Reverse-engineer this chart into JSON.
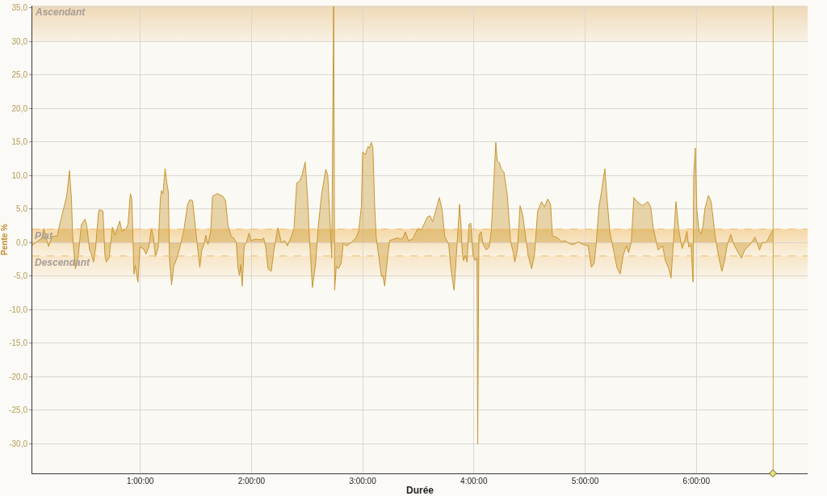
{
  "chart_data": {
    "type": "area",
    "xlabel": "Durée",
    "ylabel": "Pente %",
    "x": [
      0.03,
      0.061,
      0.121,
      0.134,
      0.15,
      0.177,
      0.206,
      0.255,
      0.271,
      0.315,
      0.339,
      0.364,
      0.382,
      0.393,
      0.417,
      0.441,
      0.46,
      0.472,
      0.504,
      0.52,
      0.545,
      0.557,
      0.581,
      0.6,
      0.625,
      0.634,
      0.665,
      0.683,
      0.695,
      0.721,
      0.75,
      0.774,
      0.816,
      0.835,
      0.872,
      0.89,
      0.912,
      0.925,
      0.944,
      0.956,
      0.973,
      0.98,
      0.997,
      1.028,
      1.053,
      1.077,
      1.101,
      1.118,
      1.137,
      1.162,
      1.181,
      1.191,
      1.205,
      1.224,
      1.239,
      1.253,
      1.263,
      1.282,
      1.302,
      1.331,
      1.36,
      1.391,
      1.427,
      1.447,
      1.471,
      1.5,
      1.52,
      1.536,
      1.554,
      1.573,
      1.59,
      1.609,
      1.634,
      1.65,
      1.694,
      1.742,
      1.766,
      1.79,
      1.819,
      1.839,
      1.863,
      1.88,
      1.892,
      1.904,
      1.917,
      1.935,
      1.955,
      1.979,
      1.996,
      2.033,
      2.093,
      2.11,
      2.129,
      2.149,
      2.178,
      2.202,
      2.238,
      2.269,
      2.298,
      2.323,
      2.359,
      2.383,
      2.407,
      2.432,
      2.456,
      2.483,
      2.504,
      2.521,
      2.548,
      2.577,
      2.601,
      2.632,
      2.668,
      2.686,
      2.71,
      2.722,
      2.739,
      2.748,
      2.763,
      2.782,
      2.806,
      2.826,
      2.855,
      2.904,
      2.94,
      2.964,
      2.988,
      3.0,
      3.024,
      3.049,
      3.06,
      3.078,
      3.092,
      3.109,
      3.121,
      3.145,
      3.169,
      3.181,
      3.198,
      3.218,
      3.242,
      3.278,
      3.314,
      3.339,
      3.363,
      3.383,
      3.412,
      3.448,
      3.496,
      3.528,
      3.557,
      3.581,
      3.605,
      3.629,
      3.653,
      3.689,
      3.713,
      3.738,
      3.774,
      3.793,
      3.822,
      3.847,
      3.871,
      3.883,
      3.895,
      3.907,
      3.924,
      3.938,
      3.956,
      3.972,
      3.992,
      4.011,
      4.028,
      4.034,
      4.045,
      4.065,
      4.083,
      4.112,
      4.137,
      4.156,
      4.174,
      4.197,
      4.21,
      4.229,
      4.246,
      4.27,
      4.301,
      4.33,
      4.355,
      4.367,
      4.391,
      4.415,
      4.439,
      4.464,
      4.488,
      4.519,
      4.544,
      4.573,
      4.609,
      4.633,
      4.664,
      4.689,
      4.706,
      4.754,
      4.79,
      4.814,
      4.863,
      4.899,
      4.936,
      4.983,
      5.027,
      5.056,
      5.081,
      5.099,
      5.124,
      5.148,
      5.177,
      5.197,
      5.221,
      5.25,
      5.286,
      5.315,
      5.342,
      5.371,
      5.39,
      5.415,
      5.438,
      5.467,
      5.516,
      5.564,
      5.589,
      5.613,
      5.656,
      5.697,
      5.721,
      5.753,
      5.772,
      5.794,
      5.816,
      5.843,
      5.872,
      5.898,
      5.915,
      5.932,
      5.952,
      5.97,
      5.976,
      5.99,
      6.004,
      6.024,
      6.043,
      6.06,
      6.077,
      6.108,
      6.133,
      6.169,
      6.198,
      6.229,
      6.253,
      6.278,
      6.309,
      6.338,
      6.375,
      6.406,
      6.435,
      6.483,
      6.527,
      6.568,
      6.592,
      6.629,
      6.665,
      6.689
    ],
    "series": [
      {
        "color": "#c8962e",
        "values": [
          -0.4,
          0.0,
          0.7,
          2.1,
          0.9,
          -0.6,
          0.9,
          1.0,
          2.3,
          5.3,
          6.9,
          10.7,
          6.5,
          0.9,
          -3.9,
          -2.3,
          0.9,
          2.7,
          3.5,
          2.5,
          -1.1,
          -1.5,
          -2.9,
          -0.7,
          4.5,
          4.9,
          4.7,
          -1.9,
          -2.9,
          -2.3,
          2.3,
          1.1,
          3.2,
          1.7,
          2.0,
          2.7,
          7.3,
          6.3,
          -4.7,
          -3.4,
          -5.3,
          -5.9,
          -0.7,
          -0.9,
          -1.7,
          -0.7,
          2.1,
          0.9,
          -2.1,
          -0.7,
          6.5,
          7.7,
          7.3,
          11.0,
          9.0,
          7.5,
          -2.3,
          -6.3,
          -3.5,
          -2.3,
          -0.5,
          1.7,
          5.7,
          6.4,
          6.2,
          1.7,
          -1.3,
          -3.7,
          -1.1,
          -0.3,
          1.1,
          -0.3,
          1.7,
          6.9,
          7.3,
          6.9,
          6.3,
          2.5,
          0.9,
          0.7,
          0.1,
          -3.9,
          -4.9,
          -3.3,
          -6.5,
          -0.5,
          0.0,
          1.4,
          0.3,
          0.5,
          0.4,
          0.7,
          -0.7,
          -3.9,
          -4.3,
          -1.1,
          2.2,
          0.0,
          0.3,
          -0.5,
          0.9,
          2.1,
          8.9,
          9.1,
          10.1,
          12.0,
          6.9,
          0.9,
          -6.7,
          -3.1,
          2.5,
          7.3,
          10.9,
          10.1,
          2.1,
          -2.3,
          35.2,
          -7.1,
          -3.5,
          -3.9,
          -3.1,
          -0.1,
          -0.5,
          0.1,
          0.7,
          1.7,
          5.3,
          13.5,
          13.1,
          14.3,
          14.1,
          14.9,
          14.1,
          4.9,
          0.9,
          -2.1,
          -5.1,
          -4.9,
          -6.5,
          -3.1,
          0.3,
          0.5,
          0.7,
          0.5,
          0.7,
          1.6,
          0.3,
          0.5,
          2.1,
          1.9,
          2.9,
          3.8,
          4.0,
          3.1,
          4.5,
          6.7,
          5.0,
          0.9,
          -0.3,
          -3.9,
          -7.1,
          -0.7,
          5.7,
          2.9,
          -1.5,
          -2.7,
          -1.9,
          -2.9,
          2.7,
          2.9,
          -1.9,
          -2.7,
          -2.3,
          -30.0,
          1.1,
          1.6,
          -0.3,
          -1.1,
          -0.7,
          1.7,
          7.3,
          14.9,
          12.1,
          11.9,
          10.9,
          10.5,
          6.9,
          0.1,
          -1.5,
          -2.9,
          -1.1,
          5.5,
          4.1,
          0.9,
          -1.9,
          -3.9,
          -1.9,
          4.7,
          6.1,
          5.3,
          6.5,
          5.7,
          1.0,
          0.7,
          0.1,
          0.3,
          -0.2,
          -0.3,
          0.1,
          -0.3,
          -0.5,
          -3.7,
          -3.1,
          -0.3,
          5.3,
          7.7,
          11.0,
          6.5,
          1.7,
          -0.7,
          -3.7,
          -4.7,
          -1.9,
          -0.5,
          -1.5,
          0.1,
          6.7,
          6.1,
          5.5,
          6.1,
          5.3,
          2.1,
          -1.1,
          -0.5,
          -2.7,
          -3.9,
          -5.3,
          0.1,
          6.1,
          1.7,
          -0.9,
          0.5,
          1.7,
          -0.7,
          -0.3,
          -5.9,
          9.9,
          14.1,
          4.9,
          1.7,
          1.3,
          2.5,
          5.1,
          7.0,
          6.1,
          0.9,
          -1.9,
          -4.3,
          -2.7,
          -0.3,
          1.2,
          -0.3,
          -1.5,
          -2.3,
          -1.1,
          -0.3,
          0.8,
          -1.1,
          0.0,
          0.0,
          1.2,
          1.9
        ]
      }
    ],
    "xlim": [
      0.03,
      7.0
    ],
    "xticks": [
      {
        "value": 1,
        "label": "1:00:00"
      },
      {
        "value": 2,
        "label": "2:00:00"
      },
      {
        "value": 3,
        "label": "3:00:00"
      },
      {
        "value": 4,
        "label": "4:00:00"
      },
      {
        "value": 5,
        "label": "5:00:00"
      },
      {
        "value": 6,
        "label": "6:00:00"
      }
    ],
    "ylim": [
      -34.4,
      35.3
    ],
    "yticks": [
      {
        "value": -30,
        "label": "-30,0"
      },
      {
        "value": -25,
        "label": "-25,0"
      },
      {
        "value": -20,
        "label": "-20,0"
      },
      {
        "value": -15,
        "label": "-15,0"
      },
      {
        "value": -10,
        "label": "-10,0"
      },
      {
        "value": -5,
        "label": "-5,0"
      },
      {
        "value": 0,
        "label": "0,0"
      },
      {
        "value": 5,
        "label": "5,0"
      },
      {
        "value": 10,
        "label": "10,0"
      },
      {
        "value": 15,
        "label": "15,0"
      },
      {
        "value": 20,
        "label": "20,0"
      },
      {
        "value": 25,
        "label": "25,0"
      },
      {
        "value": 30,
        "label": "30,0"
      },
      {
        "value": 35,
        "label": "35,0"
      }
    ],
    "grid": true,
    "bands": [
      {
        "axis": "y",
        "from": 30,
        "to": 35.3,
        "label": "Ascendant",
        "color": "#efd9b6"
      },
      {
        "axis": "y",
        "from": -2,
        "to": 2,
        "label": "Plat",
        "color": "#f5d8a6"
      },
      {
        "axis": "y",
        "from": -5.5,
        "to": -2,
        "label": "Descendant",
        "color": "#f7e6c8"
      }
    ],
    "ref_lines": [
      {
        "axis": "y",
        "value": 2,
        "color": "#f0bb6a",
        "line_style": "dashed"
      },
      {
        "axis": "y",
        "value": -2,
        "color": "#f0bb6a",
        "line_style": "dashed"
      },
      {
        "axis": "x",
        "value": 6.69,
        "color": "#c9a33c",
        "line_style": "solid"
      }
    ]
  }
}
